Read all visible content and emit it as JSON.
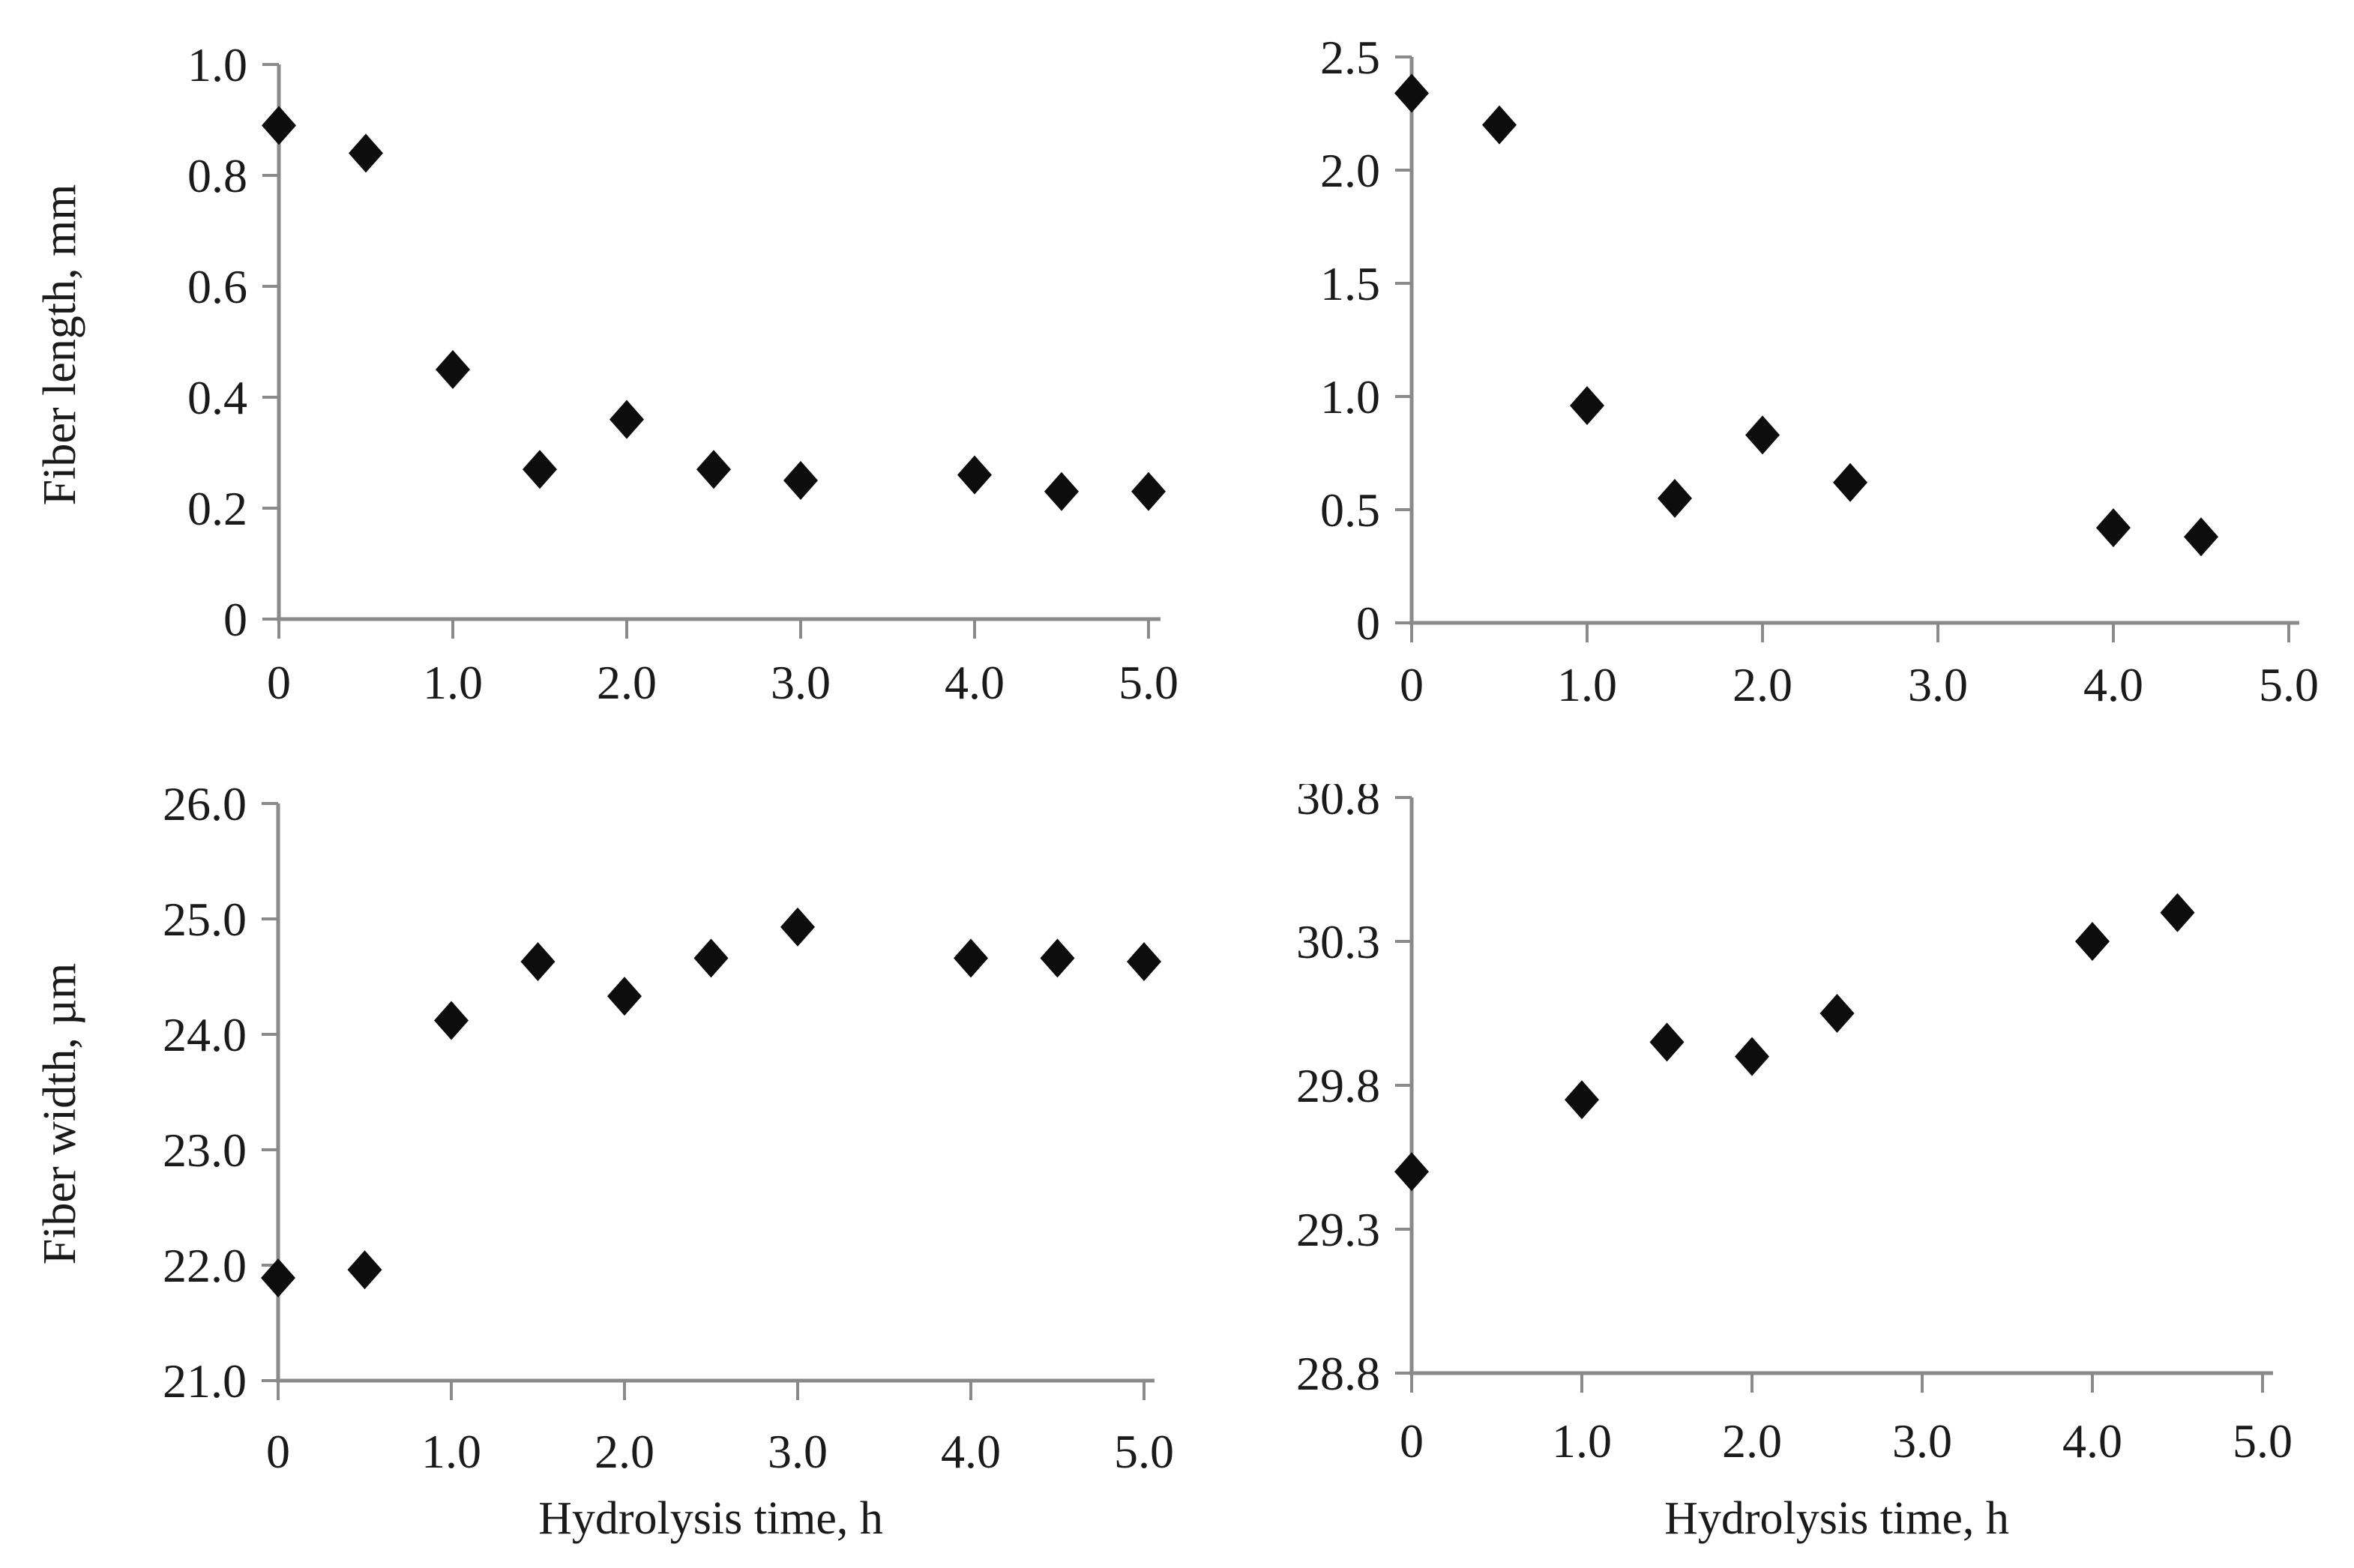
{
  "figure": {
    "background": "#ffffff",
    "marker_color": "#0d0d0d",
    "axis_color": "#8a8a8a",
    "text_color": "#1a1a1a",
    "marker_shape": "diamond",
    "x_axis_title": "Hydrolysis time, h"
  },
  "chart_data": [
    {
      "id": "fiber-length-left",
      "panel": "top-left",
      "type": "scatter",
      "title": "",
      "ylabel": "Fiber length, mm",
      "xlabel": "",
      "xlim": [
        0,
        5.0
      ],
      "ylim": [
        0,
        1.0
      ],
      "grid": false,
      "legend": null,
      "x_tick_values": [
        0,
        1.0,
        2.0,
        3.0,
        4.0,
        5.0
      ],
      "x_tick_labels": [
        "0",
        "1.0",
        "2.0",
        "3.0",
        "4.0",
        "5.0"
      ],
      "y_tick_values": [
        0,
        0.2,
        0.4,
        0.6,
        0.8,
        1.0
      ],
      "y_tick_labels": [
        "0",
        "0.2",
        "0.4",
        "0.6",
        "0.8",
        "1.0"
      ],
      "x": [
        0,
        0.5,
        1.0,
        1.5,
        2.0,
        2.5,
        3.0,
        4.0,
        4.5,
        5.0
      ],
      "y": [
        0.89,
        0.84,
        0.45,
        0.27,
        0.36,
        0.27,
        0.25,
        0.26,
        0.23,
        0.23
      ]
    },
    {
      "id": "fiber-length-right",
      "panel": "top-right",
      "type": "scatter",
      "title": "",
      "ylabel": "",
      "xlabel": "",
      "xlim": [
        0,
        5.0
      ],
      "ylim": [
        0,
        2.5
      ],
      "grid": false,
      "legend": null,
      "x_tick_values": [
        0,
        1.0,
        2.0,
        3.0,
        4.0,
        5.0
      ],
      "x_tick_labels": [
        "0",
        "1.0",
        "2.0",
        "3.0",
        "4.0",
        "5.0"
      ],
      "y_tick_values": [
        0,
        0.5,
        1.0,
        1.5,
        2.0,
        2.5
      ],
      "y_tick_labels": [
        "0",
        "0.5",
        "1.0",
        "1.5",
        "2.0",
        "2.5"
      ],
      "x": [
        0,
        0.5,
        1.0,
        1.5,
        2.0,
        2.5,
        4.0,
        4.5
      ],
      "y": [
        2.34,
        2.2,
        0.96,
        0.55,
        0.83,
        0.62,
        0.42,
        0.38
      ]
    },
    {
      "id": "fiber-width-left",
      "panel": "bottom-left",
      "type": "scatter",
      "title": "",
      "ylabel": "Fiber width, µm",
      "xlabel": "Hydrolysis time, h",
      "xlim": [
        0,
        5.0
      ],
      "ylim": [
        21.0,
        26.0
      ],
      "grid": false,
      "legend": null,
      "x_tick_values": [
        0,
        1.0,
        2.0,
        3.0,
        4.0,
        5.0
      ],
      "x_tick_labels": [
        "0",
        "1.0",
        "2.0",
        "3.0",
        "4.0",
        "5.0"
      ],
      "y_tick_values": [
        21.0,
        22.0,
        23.0,
        24.0,
        25.0,
        26.0
      ],
      "y_tick_labels": [
        "21.0",
        "22.0",
        "23.0",
        "24.0",
        "25.0",
        "26.0"
      ],
      "x": [
        0,
        0.5,
        1.0,
        1.5,
        2.0,
        2.5,
        3.0,
        4.0,
        4.5,
        5.0
      ],
      "y": [
        21.89,
        21.96,
        24.12,
        24.63,
        24.33,
        24.66,
        24.93,
        24.66,
        24.66,
        24.63
      ]
    },
    {
      "id": "fiber-width-right",
      "panel": "bottom-right",
      "type": "scatter",
      "title": "",
      "ylabel": "",
      "xlabel": "Hydrolysis time, h",
      "xlim": [
        0,
        5.0
      ],
      "ylim": [
        28.8,
        30.8
      ],
      "grid": false,
      "legend": null,
      "x_tick_values": [
        0,
        1.0,
        2.0,
        3.0,
        4.0,
        5.0
      ],
      "x_tick_labels": [
        "0",
        "1.0",
        "2.0",
        "3.0",
        "4.0",
        "5.0"
      ],
      "y_tick_values": [
        28.8,
        29.3,
        29.8,
        30.3,
        30.8
      ],
      "y_tick_labels": [
        "28.8",
        "29.3",
        "29.8",
        "30.3",
        "30.8"
      ],
      "x": [
        0,
        1.0,
        1.5,
        2.0,
        2.5,
        4.0,
        4.5
      ],
      "y": [
        29.5,
        29.75,
        29.95,
        29.9,
        30.05,
        30.3,
        30.4
      ]
    }
  ]
}
